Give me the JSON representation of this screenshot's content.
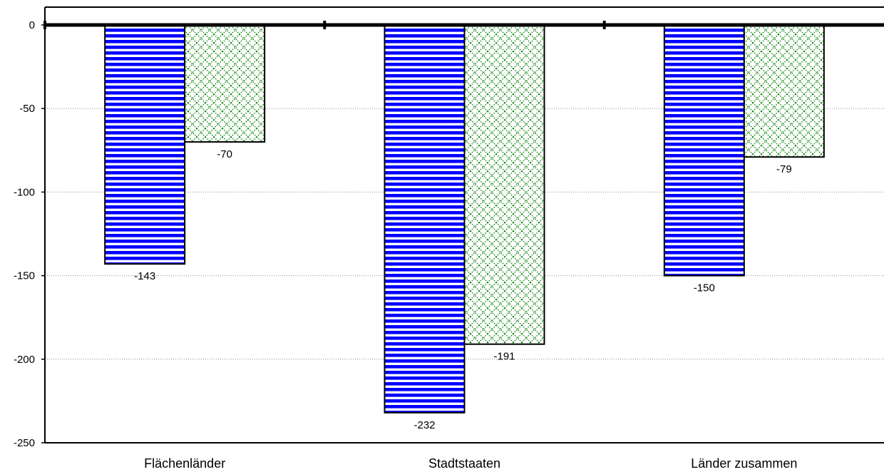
{
  "chart_data": {
    "type": "bar",
    "categories": [
      "Flächenländer",
      "Stadtstaaten",
      "Länder zusammen"
    ],
    "series": [
      {
        "values": [
          -143,
          -232,
          -150
        ],
        "color": "#0000ff",
        "pattern": "horizontal-stripes"
      },
      {
        "values": [
          -70,
          -191,
          -79
        ],
        "color": "#008000",
        "pattern": "diamond-crosshatch"
      }
    ],
    "title": "",
    "xlabel": "",
    "ylabel": "",
    "ylim": [
      -250,
      0
    ],
    "yticks": [
      0,
      -50,
      -100,
      -150,
      -200,
      -250
    ],
    "ytick_labels": [
      "0",
      "-50",
      "-100",
      "-150",
      "-200",
      "-250"
    ],
    "grid": "horizontal-dotted",
    "legend": "none"
  }
}
